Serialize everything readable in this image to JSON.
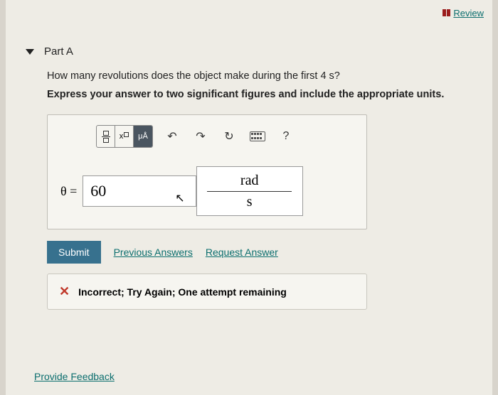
{
  "header": {
    "review_label": "Review"
  },
  "part": {
    "title": "Part A",
    "question": "How many revolutions does the object make during the first 4 s?",
    "hint": "Express your answer to two significant figures and include the appropriate units."
  },
  "toolbar": {
    "help_label": "?"
  },
  "answer": {
    "symbol": "θ =",
    "value": "60",
    "unit_numerator": "rad",
    "unit_denominator": "s"
  },
  "actions": {
    "submit": "Submit",
    "previous": "Previous Answers",
    "request": "Request Answer"
  },
  "feedback": {
    "message": "Incorrect; Try Again; One attempt remaining"
  },
  "footer": {
    "provide_feedback": "Provide Feedback"
  }
}
